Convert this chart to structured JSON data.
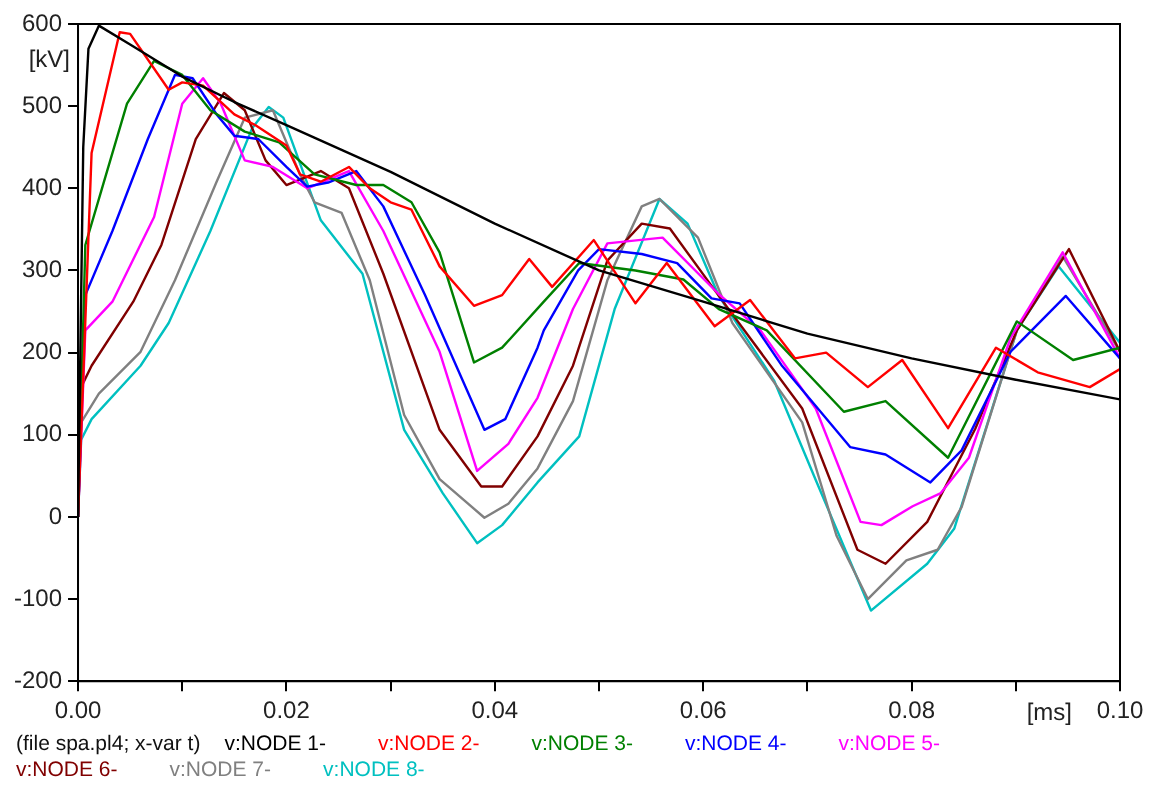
{
  "chart_data": {
    "type": "line",
    "xlabel": "[ms]",
    "ylabel": "[kV]",
    "annotations": [
      "(file spa.pl4; x-var t)"
    ],
    "xlim": [
      0,
      0.1
    ],
    "ylim": [
      -200,
      600
    ],
    "xticks": [
      {
        "value": 0,
        "label": "0.00"
      },
      {
        "value": 0.01,
        "label": null
      },
      {
        "value": 0.02,
        "label": "0.02"
      },
      {
        "value": 0.03,
        "label": null
      },
      {
        "value": 0.04,
        "label": "0.04"
      },
      {
        "value": 0.05,
        "label": null
      },
      {
        "value": 0.06,
        "label": "0.06"
      },
      {
        "value": 0.07,
        "label": null
      },
      {
        "value": 0.08,
        "label": "0.08"
      },
      {
        "value": 0.09,
        "label": null
      },
      {
        "value": 0.1,
        "label": "0.10"
      }
    ],
    "yticks": [
      -200,
      -100,
      0,
      100,
      200,
      300,
      400,
      500,
      600
    ],
    "grid": false,
    "legend": "bottom",
    "marker": "none",
    "line_style": "solid",
    "series": [
      {
        "name": "v:NODE 1-",
        "color": "#000000",
        "x": [
          0,
          0.0005,
          0.001,
          0.002,
          0.005,
          0.01,
          0.015,
          0.02,
          0.03,
          0.04,
          0.05,
          0.06,
          0.07,
          0.08,
          0.09,
          0.1
        ],
        "values": [
          0,
          450,
          570,
          598,
          575,
          536,
          505,
          477,
          420,
          357,
          300,
          262,
          223,
          193,
          167,
          143
        ]
      },
      {
        "name": "v:NODE 2-",
        "color": "#ff0000",
        "x": [
          0,
          0.0013,
          0.004,
          0.005,
          0.0087,
          0.01,
          0.012,
          0.015,
          0.017,
          0.02,
          0.0213,
          0.0233,
          0.026,
          0.028,
          0.03,
          0.032,
          0.0347,
          0.038,
          0.0407,
          0.0433,
          0.0455,
          0.0495,
          0.0535,
          0.0565,
          0.0611,
          0.0645,
          0.0688,
          0.0718,
          0.0758,
          0.0791,
          0.0835,
          0.0881,
          0.0921,
          0.0971,
          0.1
        ],
        "values": [
          0,
          443,
          590,
          588,
          520,
          529,
          525,
          490,
          477,
          452,
          417,
          408,
          426,
          400,
          383,
          374,
          305,
          257,
          270,
          314,
          280,
          337,
          260,
          309,
          232,
          264,
          193,
          200,
          158,
          191,
          108,
          206,
          176,
          158,
          180
        ]
      },
      {
        "name": "v:NODE 3-",
        "color": "#008000",
        "x": [
          0,
          0.0007,
          0.0023,
          0.0047,
          0.0073,
          0.01,
          0.0127,
          0.016,
          0.0193,
          0.0227,
          0.0267,
          0.0293,
          0.032,
          0.0347,
          0.038,
          0.0407,
          0.0447,
          0.0481,
          0.0535,
          0.0581,
          0.0615,
          0.0661,
          0.0735,
          0.0775,
          0.0835,
          0.0901,
          0.0955,
          0.1
        ],
        "values": [
          0,
          331,
          400,
          503,
          555,
          538,
          495,
          469,
          456,
          417,
          404,
          404,
          383,
          322,
          188,
          206,
          262,
          309,
          300,
          289,
          253,
          227,
          128,
          141,
          72,
          238,
          191,
          206
        ]
      },
      {
        "name": "v:NODE 4-",
        "color": "#0000ff",
        "x": [
          0,
          0.0007,
          0.0033,
          0.0067,
          0.0093,
          0.011,
          0.0133,
          0.015,
          0.0173,
          0.02,
          0.022,
          0.024,
          0.0267,
          0.0293,
          0.0333,
          0.039,
          0.041,
          0.0441,
          0.0447,
          0.048,
          0.05,
          0.0541,
          0.0575,
          0.0608,
          0.0635,
          0.0675,
          0.0741,
          0.0775,
          0.0818,
          0.0848,
          0.0895,
          0.0948,
          0.1
        ],
        "values": [
          0,
          270,
          348,
          460,
          538,
          534,
          490,
          464,
          460,
          426,
          402,
          407,
          421,
          378,
          270,
          106,
          119,
          206,
          227,
          300,
          326,
          320,
          309,
          266,
          260,
          185,
          85,
          76,
          42,
          81,
          201,
          269,
          193
        ]
      },
      {
        "name": "v:NODE 5-",
        "color": "#ff00ff",
        "x": [
          0,
          0.0007,
          0.0033,
          0.0073,
          0.01,
          0.012,
          0.0137,
          0.016,
          0.0187,
          0.022,
          0.026,
          0.0293,
          0.0347,
          0.0383,
          0.0413,
          0.0441,
          0.0475,
          0.0508,
          0.0561,
          0.0615,
          0.0655,
          0.0708,
          0.0751,
          0.0771,
          0.0801,
          0.0828,
          0.0855,
          0.0895,
          0.0945,
          0.1
        ],
        "values": [
          0,
          227,
          262,
          365,
          503,
          534,
          503,
          434,
          426,
          400,
          421,
          348,
          201,
          56,
          89,
          145,
          253,
          333,
          340,
          271,
          227,
          132,
          -6,
          -10,
          13,
          29,
          72,
          218,
          322,
          193
        ]
      },
      {
        "name": "v:NODE 6-",
        "color": "#800000",
        "x": [
          0,
          0.0003,
          0.0013,
          0.0053,
          0.008,
          0.0113,
          0.014,
          0.016,
          0.018,
          0.02,
          0.0233,
          0.026,
          0.0293,
          0.0347,
          0.0387,
          0.0407,
          0.0441,
          0.0475,
          0.0508,
          0.0541,
          0.0568,
          0.0615,
          0.0695,
          0.0748,
          0.0775,
          0.0815,
          0.0861,
          0.0901,
          0.0951,
          0.1
        ],
        "values": [
          0,
          158,
          184,
          262,
          331,
          460,
          516,
          495,
          434,
          404,
          421,
          400,
          296,
          106,
          37,
          37,
          98,
          184,
          312,
          357,
          351,
          269,
          132,
          -40,
          -57,
          -6,
          107,
          227,
          326,
          201
        ]
      },
      {
        "name": "v:NODE 7-",
        "color": "#808080",
        "x": [
          0,
          0.0003,
          0.002,
          0.006,
          0.0093,
          0.0133,
          0.016,
          0.0187,
          0.0213,
          0.0227,
          0.0253,
          0.028,
          0.0313,
          0.0347,
          0.039,
          0.0413,
          0.0441,
          0.0475,
          0.0508,
          0.0541,
          0.0558,
          0.0595,
          0.0628,
          0.0695,
          0.0728,
          0.0758,
          0.0795,
          0.0825,
          0.0848,
          0.0901,
          0.0945,
          0.1
        ],
        "values": [
          0,
          115,
          150,
          201,
          288,
          408,
          486,
          495,
          417,
          383,
          370,
          288,
          124,
          46,
          -1,
          16,
          59,
          141,
          288,
          378,
          387,
          340,
          236,
          115,
          -23,
          -100,
          -53,
          -40,
          12,
          227,
          317,
          201
        ]
      },
      {
        "name": "v:NODE 8-",
        "color": "#00c0c0",
        "x": [
          0,
          0.0003,
          0.0013,
          0.006,
          0.0087,
          0.0127,
          0.0167,
          0.0183,
          0.0197,
          0.0233,
          0.0273,
          0.0313,
          0.035,
          0.0383,
          0.0407,
          0.0441,
          0.0481,
          0.0515,
          0.0558,
          0.0585,
          0.0615,
          0.0668,
          0.0708,
          0.0761,
          0.0815,
          0.0841,
          0.0901,
          0.0941,
          0.1
        ],
        "values": [
          0,
          94,
          119,
          184,
          236,
          348,
          473,
          499,
          486,
          361,
          296,
          106,
          29,
          -32,
          -10,
          42,
          98,
          253,
          387,
          357,
          269,
          166,
          45,
          -114,
          -57,
          -14,
          227,
          305,
          212
        ]
      }
    ]
  }
}
